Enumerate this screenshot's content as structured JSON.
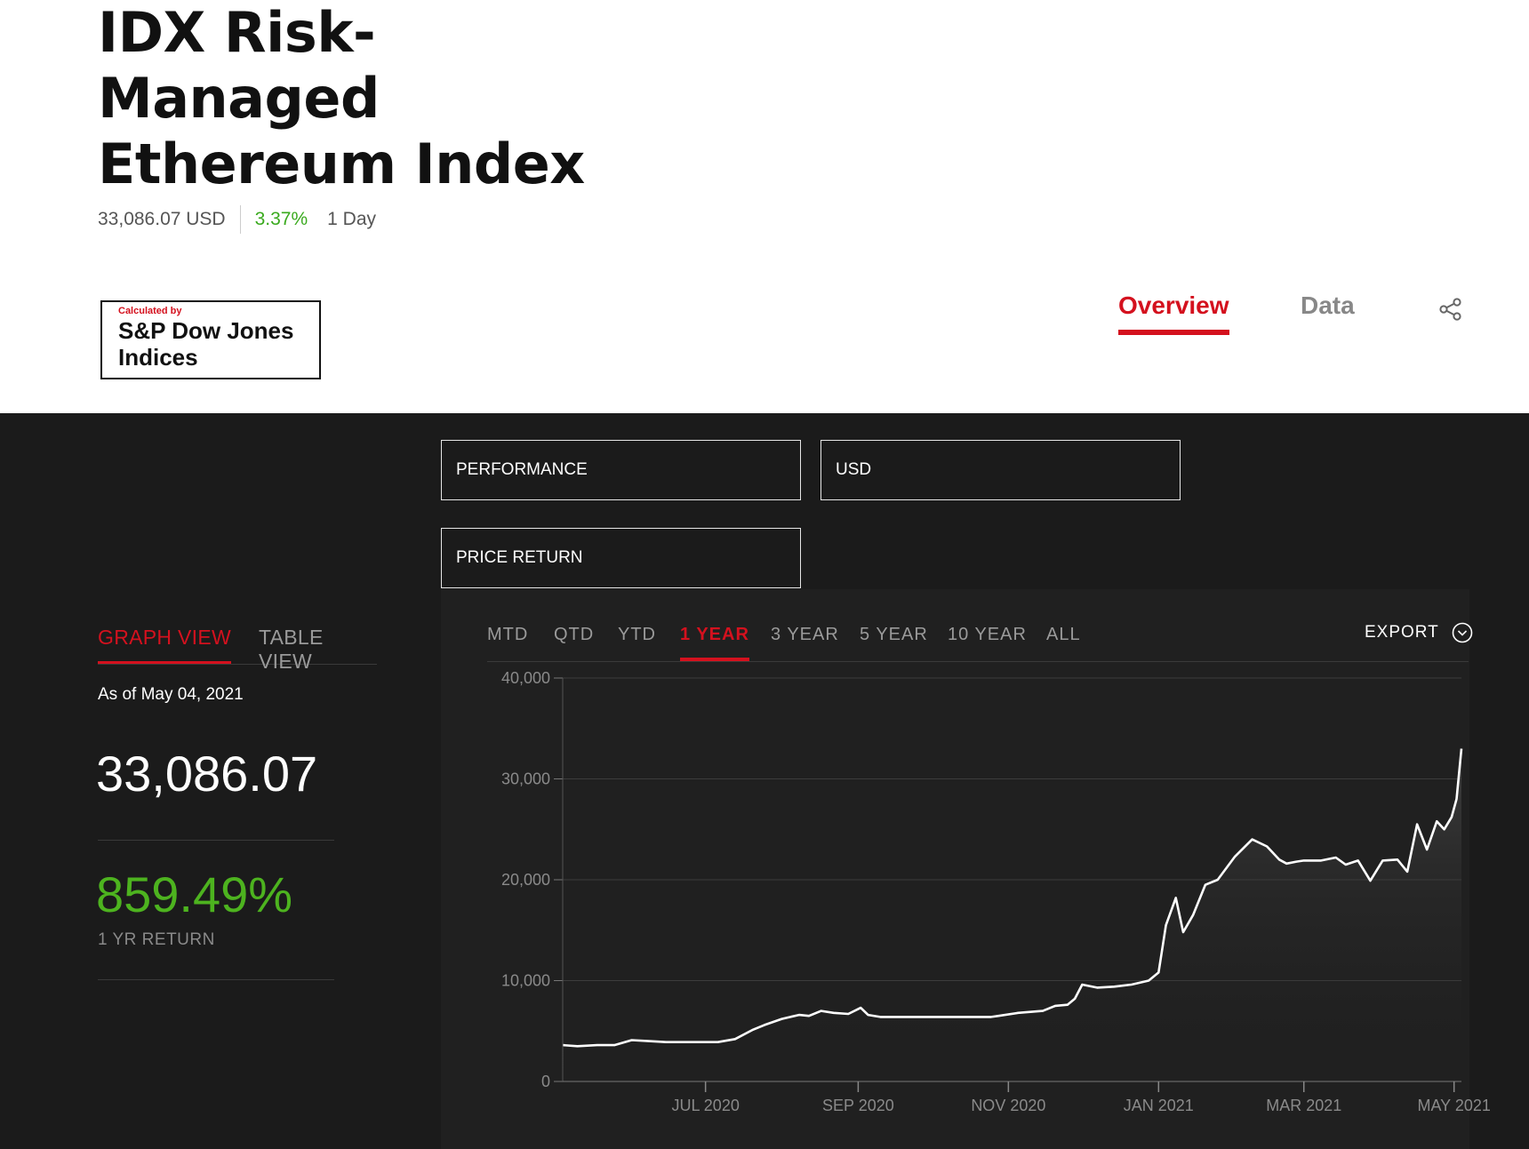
{
  "header": {
    "title_lines": [
      "IDX Risk-",
      "Managed",
      "Ethereum Index"
    ],
    "price": "33,086.07 USD",
    "change": "3.37%",
    "period": "1 Day"
  },
  "logo": {
    "calculated_by": "Calculated by",
    "brand_line1": "S&P Dow Jones",
    "brand_line2": "Indices"
  },
  "nav": {
    "overview": "Overview",
    "data": "Data"
  },
  "filters": {
    "metric": "PERFORMANCE",
    "currency": "USD",
    "return_type": "PRICE RETURN"
  },
  "views": {
    "graph": "GRAPH VIEW",
    "table": "TABLE VIEW"
  },
  "summary": {
    "as_of": "As of May 04, 2021",
    "value": "33,086.07",
    "return_value": "859.49%",
    "return_label": "1 YR RETURN"
  },
  "ranges": {
    "items": [
      "MTD",
      "QTD",
      "YTD",
      "1 YEAR",
      "3 YEAR",
      "5 YEAR",
      "10 YEAR",
      "ALL"
    ],
    "selected": "1 YEAR"
  },
  "export_label": "EXPORT",
  "colors": {
    "accent": "#d4111e",
    "positive": "#4db31f",
    "dark_bg": "#1b1b1b",
    "line": "#ffffff"
  },
  "chart_data": {
    "type": "area",
    "ylim": [
      0,
      40000
    ],
    "yticks": [
      0,
      10000,
      20000,
      30000,
      40000
    ],
    "ytick_labels": [
      "0",
      "10,000",
      "20,000",
      "30,000",
      "40,000"
    ],
    "xlim": [
      "2020-05-04",
      "2021-05-04"
    ],
    "xticks": [
      "2020-07-01",
      "2020-09-01",
      "2020-11-01",
      "2021-01-01",
      "2021-03-01",
      "2021-05-01"
    ],
    "xtick_labels": [
      "JUL 2020",
      "SEP 2020",
      "NOV 2020",
      "JAN 2021",
      "MAR 2021",
      "MAY 2021"
    ],
    "grid": "horizontal",
    "series": [
      {
        "x": [
          "2020-05-04",
          "2020-05-10",
          "2020-05-18",
          "2020-05-25",
          "2020-06-01",
          "2020-06-08",
          "2020-06-15",
          "2020-06-22",
          "2020-06-29",
          "2020-07-06",
          "2020-07-13",
          "2020-07-20",
          "2020-07-25",
          "2020-08-01",
          "2020-08-08",
          "2020-08-12",
          "2020-08-17",
          "2020-08-22",
          "2020-08-28",
          "2020-09-02",
          "2020-09-05",
          "2020-09-10",
          "2020-09-15",
          "2020-09-25",
          "2020-10-05",
          "2020-10-15",
          "2020-10-25",
          "2020-10-28",
          "2020-11-05",
          "2020-11-15",
          "2020-11-20",
          "2020-11-25",
          "2020-11-28",
          "2020-12-01",
          "2020-12-07",
          "2020-12-14",
          "2020-12-21",
          "2020-12-28",
          "2021-01-01",
          "2021-01-04",
          "2021-01-08",
          "2021-01-11",
          "2021-01-15",
          "2021-01-20",
          "2021-01-25",
          "2021-02-01",
          "2021-02-08",
          "2021-02-14",
          "2021-02-19",
          "2021-02-22",
          "2021-02-26",
          "2021-03-01",
          "2021-03-08",
          "2021-03-14",
          "2021-03-18",
          "2021-03-23",
          "2021-03-28",
          "2021-04-02",
          "2021-04-08",
          "2021-04-12",
          "2021-04-16",
          "2021-04-20",
          "2021-04-24",
          "2021-04-27",
          "2021-04-30",
          "2021-05-02",
          "2021-05-04"
        ],
        "y": [
          3600,
          3500,
          3600,
          3600,
          4100,
          4000,
          3900,
          3900,
          3900,
          3900,
          4200,
          5100,
          5600,
          6200,
          6600,
          6500,
          7000,
          6800,
          6700,
          7300,
          6600,
          6400,
          6400,
          6400,
          6400,
          6400,
          6400,
          6500,
          6800,
          7000,
          7500,
          7600,
          8200,
          9600,
          9300,
          9400,
          9600,
          10000,
          10800,
          15500,
          18200,
          14800,
          16500,
          19500,
          20000,
          22300,
          24000,
          23300,
          22000,
          21600,
          21800,
          21900,
          21900,
          22200,
          21500,
          21900,
          19900,
          21900,
          22000,
          20800,
          25500,
          23000,
          25800,
          25000,
          26200,
          28000,
          33000
        ]
      }
    ]
  }
}
